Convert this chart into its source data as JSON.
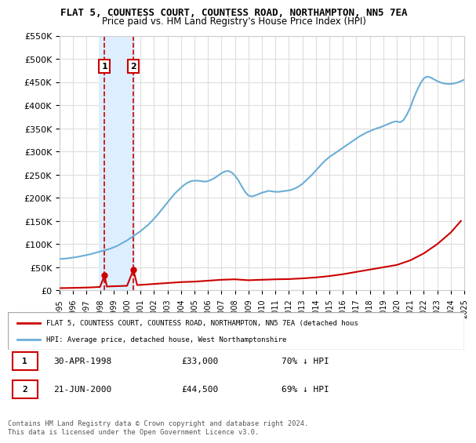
{
  "title": "FLAT 5, COUNTESS COURT, COUNTESS ROAD, NORTHAMPTON, NN5 7EA",
  "subtitle": "Price paid vs. HM Land Registry's House Price Index (HPI)",
  "hpi_years": [
    1995,
    1995.25,
    1995.5,
    1995.75,
    1996,
    1996.25,
    1996.5,
    1996.75,
    1997,
    1997.25,
    1997.5,
    1997.75,
    1998,
    1998.25,
    1998.5,
    1998.75,
    1999,
    1999.25,
    1999.5,
    1999.75,
    2000,
    2000.25,
    2000.5,
    2000.75,
    2001,
    2001.25,
    2001.5,
    2001.75,
    2002,
    2002.25,
    2002.5,
    2002.75,
    2003,
    2003.25,
    2003.5,
    2003.75,
    2004,
    2004.25,
    2004.5,
    2004.75,
    2005,
    2005.25,
    2005.5,
    2005.75,
    2006,
    2006.25,
    2006.5,
    2006.75,
    2007,
    2007.25,
    2007.5,
    2007.75,
    2008,
    2008.25,
    2008.5,
    2008.75,
    2009,
    2009.25,
    2009.5,
    2009.75,
    2010,
    2010.25,
    2010.5,
    2010.75,
    2011,
    2011.25,
    2011.5,
    2011.75,
    2012,
    2012.25,
    2012.5,
    2012.75,
    2013,
    2013.25,
    2013.5,
    2013.75,
    2014,
    2014.25,
    2014.5,
    2014.75,
    2015,
    2015.25,
    2015.5,
    2015.75,
    2016,
    2016.25,
    2016.5,
    2016.75,
    2017,
    2017.25,
    2017.5,
    2017.75,
    2018,
    2018.25,
    2018.5,
    2018.75,
    2019,
    2019.25,
    2019.5,
    2019.75,
    2020,
    2020.25,
    2020.5,
    2020.75,
    2021,
    2021.25,
    2021.5,
    2021.75,
    2022,
    2022.25,
    2022.5,
    2022.75,
    2023,
    2023.25,
    2023.5,
    2023.75,
    2024,
    2024.25,
    2024.5,
    2024.75,
    2025
  ],
  "hpi_values": [
    68000,
    68500,
    69000,
    70000,
    71000,
    72000,
    73500,
    75000,
    76500,
    78000,
    80000,
    82000,
    84000,
    86000,
    88000,
    90000,
    93000,
    96000,
    100000,
    104000,
    108000,
    113000,
    118000,
    123000,
    128000,
    134000,
    140000,
    147000,
    155000,
    163000,
    172000,
    181000,
    190000,
    199000,
    208000,
    215000,
    222000,
    228000,
    233000,
    236000,
    237000,
    237000,
    236000,
    235000,
    236000,
    239000,
    243000,
    248000,
    253000,
    257000,
    258000,
    255000,
    248000,
    238000,
    225000,
    213000,
    205000,
    203000,
    205000,
    208000,
    211000,
    213000,
    215000,
    214000,
    213000,
    213000,
    214000,
    215000,
    216000,
    218000,
    221000,
    225000,
    230000,
    237000,
    244000,
    251000,
    259000,
    267000,
    275000,
    282000,
    288000,
    293000,
    298000,
    303000,
    308000,
    313000,
    318000,
    323000,
    328000,
    333000,
    337000,
    341000,
    344000,
    347000,
    350000,
    352000,
    355000,
    358000,
    361000,
    364000,
    365000,
    363000,
    368000,
    380000,
    395000,
    415000,
    432000,
    447000,
    458000,
    462000,
    460000,
    456000,
    452000,
    449000,
    447000,
    446000,
    446000,
    447000,
    449000,
    452000,
    455000
  ],
  "sale_years": [
    1998.33,
    2000.47
  ],
  "sale_values": [
    33000,
    44500
  ],
  "sale_labels": [
    "1",
    "2"
  ],
  "sale_dates": [
    "30-APR-1998",
    "21-JUN-2000"
  ],
  "sale_prices": [
    "£33,000",
    "£44,500"
  ],
  "sale_hpi_pct": [
    "70% ↓ HPI",
    "69% ↓ HPI"
  ],
  "red_line_years": [
    1995,
    1995.5,
    1996,
    1996.5,
    1997,
    1997.5,
    1998,
    1998.33,
    1998.5,
    1999,
    1999.5,
    2000,
    2000.47,
    2000.75,
    2001,
    2001.5,
    2002,
    2003,
    2004,
    2005,
    2006,
    2007,
    2008,
    2009,
    2010,
    2011,
    2012,
    2013,
    2014,
    2015,
    2016,
    2017,
    2018,
    2019,
    2020,
    2021,
    2022,
    2023,
    2024,
    2024.75
  ],
  "red_line_values": [
    5000,
    5200,
    5500,
    5800,
    6200,
    6800,
    7500,
    33000,
    8500,
    9000,
    9500,
    10000,
    44500,
    11500,
    12000,
    13000,
    14000,
    16000,
    18000,
    19000,
    21000,
    23000,
    24000,
    22000,
    23000,
    24000,
    24500,
    26000,
    28000,
    31000,
    35000,
    40000,
    45000,
    50000,
    55000,
    65000,
    80000,
    100000,
    125000,
    150000
  ],
  "hpi_color": "#6baed6",
  "red_color": "#cc0000",
  "marker_color": "#cc0000",
  "vline_color": "#cc0000",
  "highlight_color": "#ddeeff",
  "background_color": "#ffffff",
  "grid_color": "#dddddd",
  "ylim": [
    0,
    550000
  ],
  "xlim": [
    1995,
    2025
  ],
  "yticks": [
    0,
    50000,
    100000,
    150000,
    200000,
    250000,
    300000,
    350000,
    400000,
    450000,
    500000,
    550000
  ],
  "ytick_labels": [
    "£0",
    "£50K",
    "£100K",
    "£150K",
    "£200K",
    "£250K",
    "£300K",
    "£350K",
    "£400K",
    "£450K",
    "£500K",
    "£550K"
  ],
  "legend_label_red": "FLAT 5, COUNTESS COURT, COUNTESS ROAD, NORTHAMPTON, NN5 7EA (detached hous",
  "legend_label_blue": "HPI: Average price, detached house, West Northamptonshire",
  "footer": "Contains HM Land Registry data © Crown copyright and database right 2024.\nThis data is licensed under the Open Government Licence v3.0."
}
